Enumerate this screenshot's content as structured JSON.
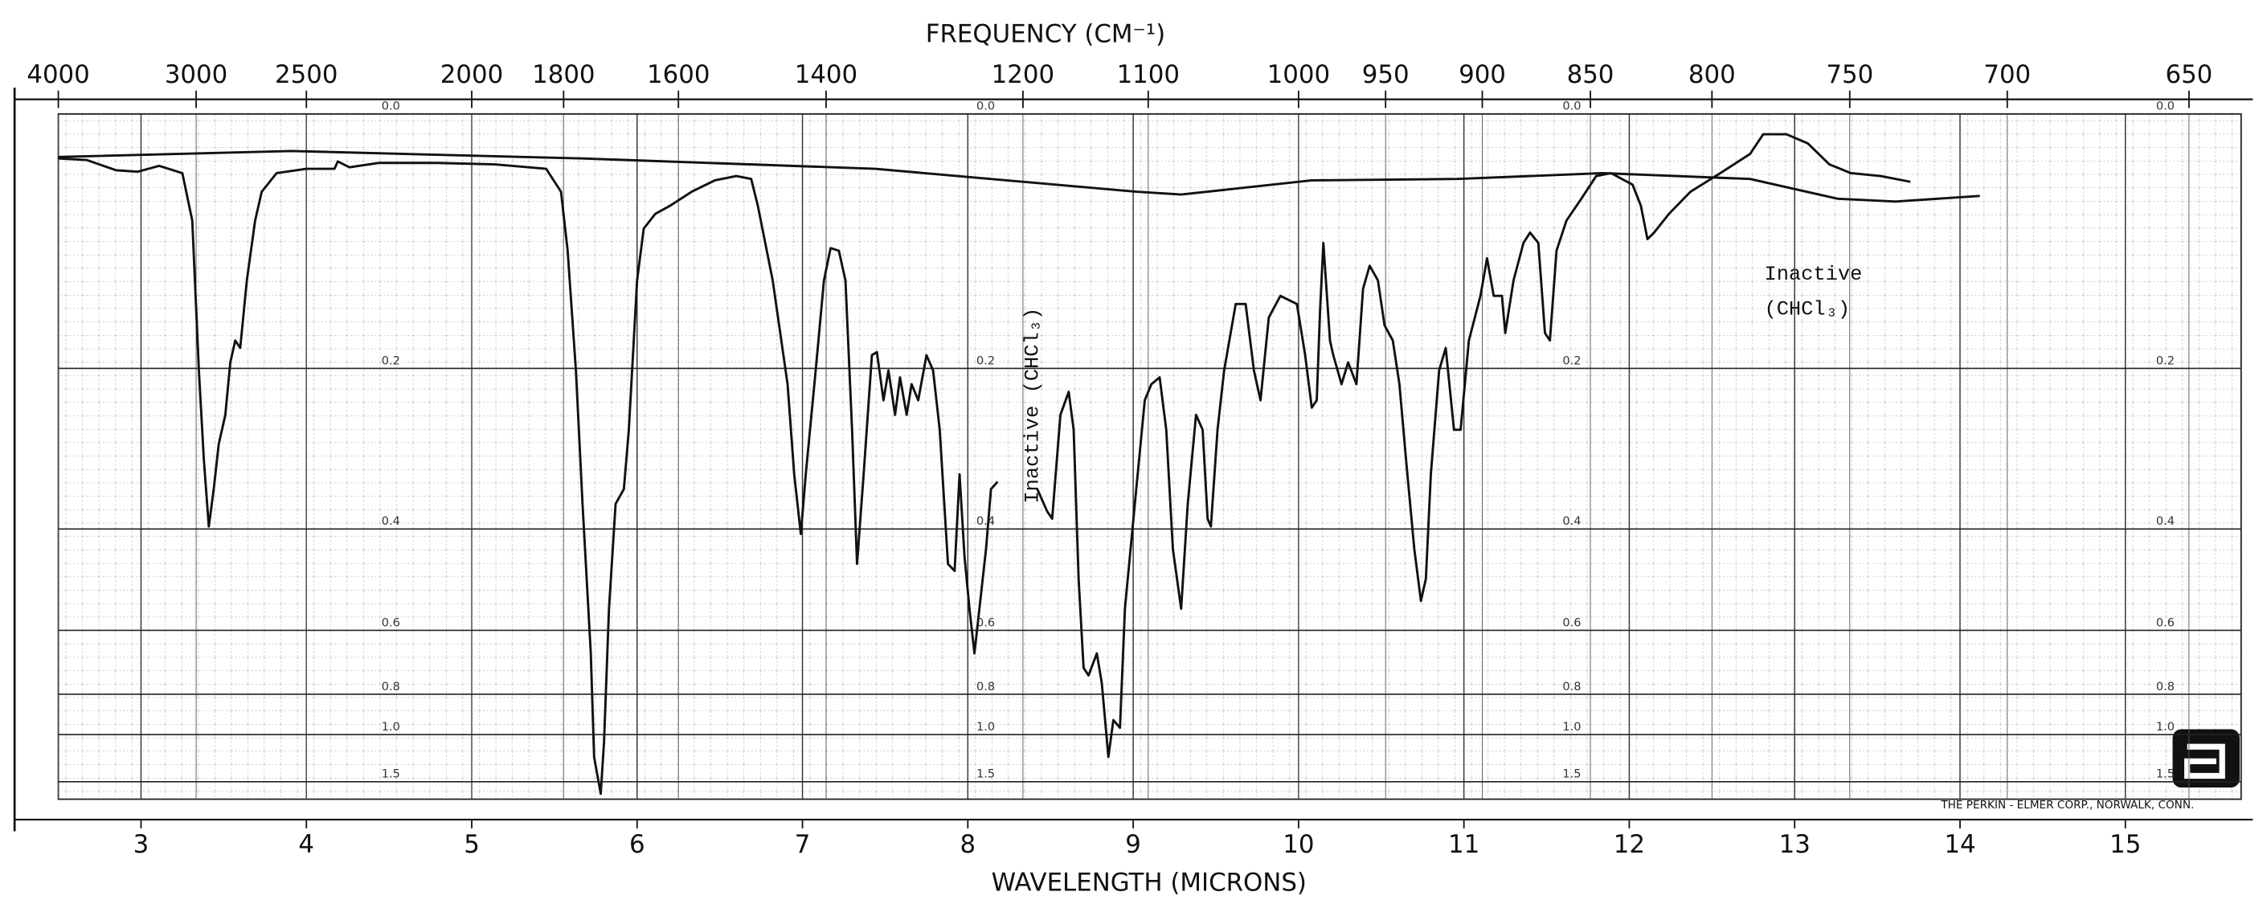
{
  "chart_data": {
    "type": "line",
    "title": "FREQUENCY (CM⁻¹)",
    "x_label": "WAVELENGTH (MICRONS)",
    "credit": "THE PERKIN - ELMER CORP., NORWALK, CONN.",
    "annotations": [
      "Inactive",
      "(CHCl₃)",
      "Inactive (CHCl₃)"
    ],
    "xlim": [
      2.5,
      15.7
    ],
    "xticks": [
      3,
      4,
      5,
      6,
      7,
      8,
      9,
      10,
      11,
      12,
      13,
      14,
      15
    ],
    "x2ticks": [
      4000,
      3000,
      2500,
      2000,
      1800,
      1600,
      1400,
      1200,
      1100,
      1000,
      950,
      900,
      850,
      800,
      750,
      700,
      650
    ],
    "ylim": [
      0,
      2.2
    ],
    "yscale": "absorbance",
    "yticks": [
      {
        "value": 0,
        "label": "0.0"
      },
      0.2,
      0.4,
      0.6,
      0.8,
      {
        "value": 1,
        "label": "1.0"
      },
      1.5
    ],
    "grid": true,
    "series": [
      {
        "color": "#111",
        "x": [
          2.5,
          2.67,
          2.85,
          2.98,
          3.11,
          3.25,
          3.31,
          3.35,
          3.38,
          3.41,
          3.44,
          3.47,
          3.51,
          3.54,
          3.57,
          3.6,
          3.64,
          3.69,
          3.73,
          3.82,
          4.0,
          4.17,
          4.19,
          4.26,
          4.44,
          4.79,
          5.14,
          5.45,
          5.54,
          5.58,
          5.63,
          5.67,
          5.72,
          5.74,
          5.78,
          5.8,
          5.83,
          5.87,
          5.92,
          5.95,
          6.0,
          6.04,
          6.11,
          6.2,
          6.33,
          6.47,
          6.6,
          6.69,
          6.73,
          6.82,
          6.91,
          6.95,
          6.99,
          7.02,
          7.08,
          7.13,
          7.17,
          7.22,
          7.26,
          7.3,
          7.33,
          7.37,
          7.42,
          7.45,
          7.49,
          7.52,
          7.56,
          7.59,
          7.63,
          7.66,
          7.7,
          7.75,
          7.79,
          7.83,
          7.88,
          7.92,
          7.95,
          7.98,
          8.01,
          8.04,
          8.07,
          8.11,
          8.14,
          8.18,
          null,
          8.42,
          8.48,
          8.51,
          8.56,
          8.61,
          8.64,
          8.67,
          8.7,
          8.73,
          8.78,
          8.81,
          8.85,
          8.88,
          8.92,
          8.95,
          9.01,
          9.07,
          9.11,
          9.16,
          9.2,
          9.24,
          9.29,
          9.33,
          9.38,
          9.42,
          9.45,
          9.47,
          9.51,
          9.55,
          9.62,
          9.68,
          9.73,
          9.77,
          9.82,
          9.89,
          9.99,
          10.04,
          10.08,
          10.11,
          10.13,
          10.15,
          10.19,
          10.21,
          10.26,
          10.3,
          10.35,
          10.39,
          10.43,
          10.48,
          10.52,
          10.57,
          10.61,
          10.65,
          10.7,
          10.74,
          10.77,
          10.8,
          10.85,
          10.89,
          10.94,
          10.98,
          11.03,
          11.1,
          11.14,
          11.18,
          11.23,
          11.25,
          11.3,
          11.36,
          11.4,
          11.45,
          11.49,
          11.52,
          11.56,
          11.62,
          11.71,
          11.8,
          11.89,
          12.02,
          12.07,
          12.11,
          12.15,
          12.24,
          12.37,
          12.55,
          12.73,
          12.81,
          12.95,
          13.08,
          13.21,
          13.34,
          13.52,
          13.7
        ],
        "values": [
          0.029,
          0.03,
          0.037,
          0.038,
          0.034,
          0.039,
          0.073,
          0.202,
          0.302,
          0.396,
          0.341,
          0.283,
          0.249,
          0.194,
          0.173,
          0.18,
          0.12,
          0.073,
          0.052,
          0.039,
          0.036,
          0.036,
          0.031,
          0.035,
          0.032,
          0.032,
          0.033,
          0.036,
          0.052,
          0.096,
          0.202,
          0.362,
          0.662,
          1.17,
          1.85,
          1.05,
          0.549,
          0.362,
          0.341,
          0.266,
          0.12,
          0.079,
          0.068,
          0.062,
          0.052,
          0.044,
          0.041,
          0.043,
          0.062,
          0.12,
          0.216,
          0.321,
          0.408,
          0.321,
          0.202,
          0.12,
          0.094,
          0.096,
          0.12,
          0.266,
          0.459,
          0.321,
          0.187,
          0.184,
          0.233,
          0.202,
          0.249,
          0.209,
          0.249,
          0.216,
          0.233,
          0.187,
          0.202,
          0.266,
          0.459,
          0.472,
          0.321,
          0.446,
          0.549,
          0.662,
          0.549,
          0.433,
          0.341,
          0.331,
          null,
          0.341,
          0.373,
          0.384,
          0.249,
          0.224,
          0.266,
          0.487,
          0.706,
          0.731,
          0.662,
          0.757,
          1.17,
          0.917,
          0.959,
          0.549,
          0.362,
          0.233,
          0.216,
          0.209,
          0.266,
          0.433,
          0.549,
          0.362,
          0.249,
          0.266,
          0.384,
          0.396,
          0.266,
          0.202,
          0.14,
          0.14,
          0.202,
          0.233,
          0.152,
          0.133,
          0.14,
          0.187,
          0.241,
          0.233,
          0.146,
          0.09,
          0.173,
          0.187,
          0.216,
          0.194,
          0.216,
          0.127,
          0.108,
          0.12,
          0.159,
          0.173,
          0.216,
          0.302,
          0.433,
          0.532,
          0.487,
          0.321,
          0.202,
          0.18,
          0.266,
          0.266,
          0.173,
          0.133,
          0.102,
          0.133,
          0.133,
          0.166,
          0.12,
          0.09,
          0.082,
          0.09,
          0.166,
          0.173,
          0.096,
          0.073,
          0.057,
          0.041,
          0.039,
          0.047,
          0.062,
          0.087,
          0.082,
          0.068,
          0.052,
          0.039,
          0.026,
          0.013,
          0.013,
          0.019,
          0.033,
          0.039,
          0.041,
          0.045
        ]
      },
      {
        "color": "#111",
        "x": [
          2.5,
          3.91,
          5.67,
          7.44,
          9.02,
          9.29,
          10.08,
          10.96,
          11.84,
          12.73,
          13.26,
          13.61,
          14.12
        ],
        "values": [
          0.028,
          0.024,
          0.029,
          0.036,
          0.052,
          0.054,
          0.044,
          0.043,
          0.039,
          0.043,
          0.057,
          0.059,
          0.055
        ]
      }
    ]
  }
}
